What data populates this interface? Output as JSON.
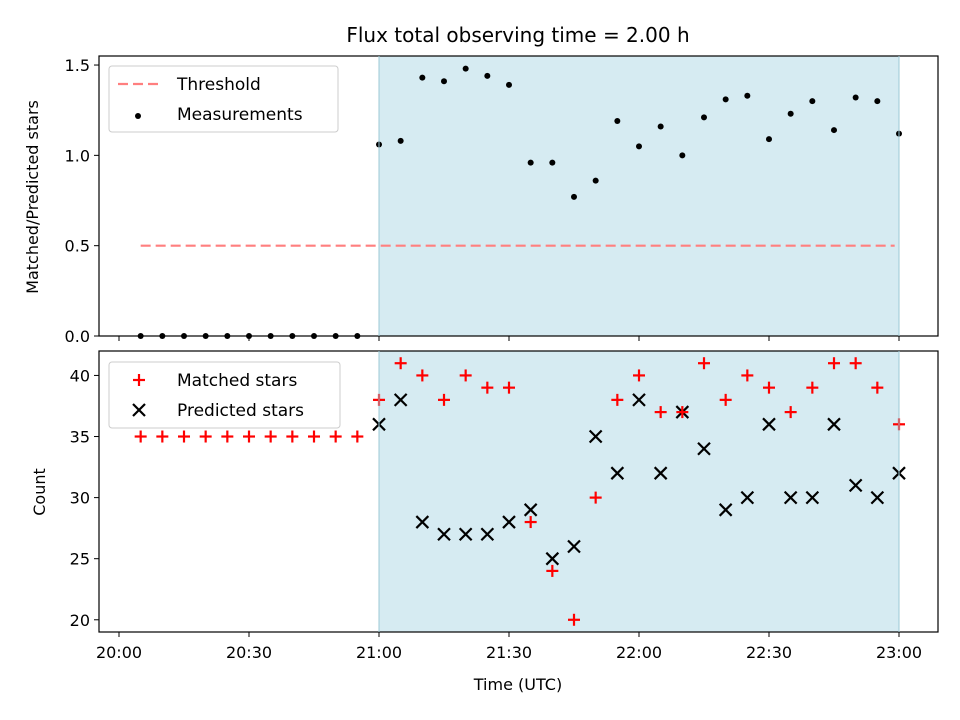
{
  "chart_data": [
    {
      "type": "scatter",
      "title": "Flux total observing time = 2.00 h",
      "ylabel": "Matched/Predicted stars",
      "xlabel": "",
      "ylim": [
        0,
        1.55
      ],
      "yticks": [
        "0.0",
        "0.5",
        "1.0",
        "1.5"
      ],
      "ytick_values": [
        0,
        0.5,
        1.0,
        1.5
      ],
      "legend_placement": "top-left",
      "grid": false,
      "shaded_region": {
        "start": "21:00",
        "end": "23:00",
        "color": "#add8e6"
      },
      "threshold": {
        "name": "Threshold",
        "value": 0.5,
        "x_start": "20:05",
        "x_end": "22:59",
        "color": "#ff7f7f",
        "style": "dashed"
      },
      "series": [
        {
          "name": "Measurements",
          "color": "#000000",
          "x": [
            "20:05",
            "20:10",
            "20:15",
            "20:20",
            "20:25",
            "20:30",
            "20:35",
            "20:40",
            "20:45",
            "20:50",
            "20:55",
            "21:00",
            "21:05",
            "21:10",
            "21:15",
            "21:20",
            "21:25",
            "21:30",
            "21:35",
            "21:40",
            "21:45",
            "21:50",
            "21:55",
            "22:00",
            "22:05",
            "22:10",
            "22:15",
            "22:20",
            "22:25",
            "22:30",
            "22:35",
            "22:40",
            "22:45",
            "22:50",
            "22:55",
            "23:00"
          ],
          "values": [
            0,
            0,
            0,
            0,
            0,
            0,
            0,
            0,
            0,
            0,
            0,
            1.06,
            1.08,
            1.43,
            1.41,
            1.48,
            1.44,
            1.39,
            0.96,
            0.96,
            0.77,
            0.86,
            1.19,
            1.05,
            1.16,
            1.0,
            1.21,
            1.31,
            1.33,
            1.09,
            1.23,
            1.3,
            1.14,
            1.32,
            1.3,
            1.12
          ]
        }
      ]
    },
    {
      "type": "scatter",
      "title": "",
      "ylabel": "Count",
      "xlabel": "Time (UTC)",
      "ylim": [
        19,
        42
      ],
      "yticks": [
        "20",
        "25",
        "30",
        "35",
        "40"
      ],
      "ytick_values": [
        20,
        25,
        30,
        35,
        40
      ],
      "xticks": [
        "20:00",
        "20:30",
        "21:00",
        "21:30",
        "22:00",
        "22:30",
        "23:00"
      ],
      "legend_placement": "top-left",
      "grid": false,
      "shaded_region": {
        "start": "21:00",
        "end": "23:00",
        "color": "#add8e6"
      },
      "series": [
        {
          "name": "Matched stars",
          "color": "#ff0000",
          "marker": "plus",
          "x": [
            "20:05",
            "20:10",
            "20:15",
            "20:20",
            "20:25",
            "20:30",
            "20:35",
            "20:40",
            "20:45",
            "20:50",
            "20:55",
            "21:00",
            "21:05",
            "21:10",
            "21:15",
            "21:20",
            "21:25",
            "21:30",
            "21:35",
            "21:40",
            "21:45",
            "21:50",
            "21:55",
            "22:00",
            "22:05",
            "22:10",
            "22:15",
            "22:20",
            "22:25",
            "22:30",
            "22:35",
            "22:40",
            "22:45",
            "22:50",
            "22:55",
            "23:00"
          ],
          "values": [
            35,
            35,
            35,
            35,
            35,
            35,
            35,
            35,
            35,
            35,
            35,
            38,
            41,
            40,
            38,
            40,
            39,
            39,
            28,
            24,
            20,
            30,
            38,
            40,
            37,
            37,
            41,
            38,
            40,
            39,
            37,
            39,
            41,
            41,
            39,
            36
          ]
        },
        {
          "name": "Predicted stars",
          "color": "#000000",
          "marker": "x",
          "x": [
            "21:00",
            "21:05",
            "21:10",
            "21:15",
            "21:20",
            "21:25",
            "21:30",
            "21:35",
            "21:40",
            "21:45",
            "21:50",
            "21:55",
            "22:00",
            "22:05",
            "22:10",
            "22:15",
            "22:20",
            "22:25",
            "22:30",
            "22:35",
            "22:40",
            "22:45",
            "22:50",
            "22:55",
            "23:00"
          ],
          "values": [
            36,
            38,
            28,
            27,
            27,
            27,
            28,
            29,
            25,
            26,
            35,
            32,
            38,
            32,
            37,
            34,
            29,
            30,
            36,
            30,
            30,
            36,
            31,
            30,
            32
          ]
        }
      ]
    }
  ]
}
